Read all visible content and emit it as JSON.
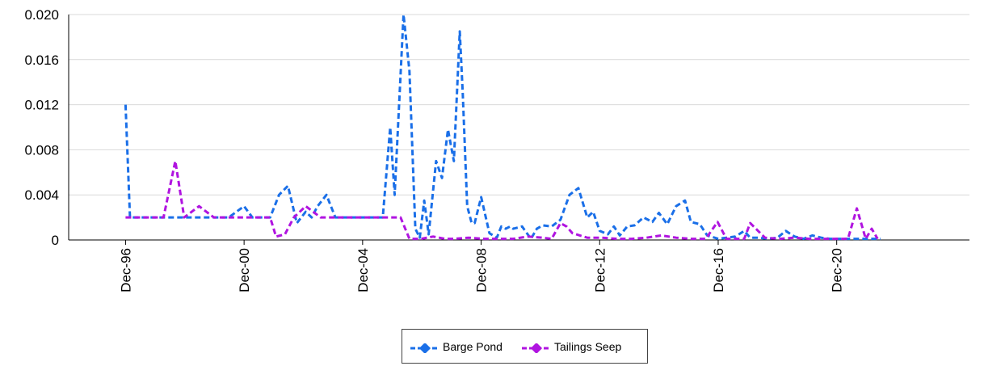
{
  "chart_data": {
    "type": "line",
    "title": "",
    "xlabel": "",
    "ylabel": "",
    "ylim": [
      0,
      0.02
    ],
    "yticks": [
      "0",
      "0.004",
      "0.008",
      "0.012",
      "0.016",
      "0.020"
    ],
    "ytick_values": [
      0,
      0.004,
      0.008,
      0.012,
      0.016,
      0.02
    ],
    "xlim": [
      1995.0,
      2025.4
    ],
    "xticks": [
      "Dec-96",
      "Dec-00",
      "Dec-04",
      "Dec-08",
      "Dec-12",
      "Dec-16",
      "Dec-20"
    ],
    "xtick_values": [
      1996.92,
      2000.92,
      2004.92,
      2008.92,
      2012.92,
      2016.92,
      2020.92
    ],
    "grid": "horizontal",
    "legend": "bottom",
    "series": [
      {
        "name": "Barge Pond",
        "color": "#1a6fe8",
        "style": "dashed",
        "x": [
          1996.92,
          1997.07,
          1997.4,
          1997.9,
          1998.4,
          1998.9,
          1999.4,
          1999.9,
          2000.4,
          2000.92,
          2001.2,
          2001.5,
          2001.8,
          2002.1,
          2002.4,
          2002.7,
          2003.0,
          2003.2,
          2003.4,
          2003.7,
          2004.0,
          2004.5,
          2005.0,
          2005.3,
          2005.6,
          2005.85,
          2006.0,
          2006.3,
          2006.5,
          2006.7,
          2006.85,
          2007.0,
          2007.15,
          2007.4,
          2007.6,
          2007.8,
          2008.0,
          2008.2,
          2008.3,
          2008.45,
          2008.6,
          2008.7,
          2008.92,
          2009.2,
          2009.45,
          2009.6,
          2009.75,
          2009.9,
          2010.0,
          2010.3,
          2010.6,
          2010.8,
          2011.0,
          2011.3,
          2011.6,
          2011.9,
          2012.2,
          2012.5,
          2012.7,
          2012.92,
          2013.2,
          2013.4,
          2013.6,
          2013.85,
          2014.1,
          2014.4,
          2014.7,
          2014.92,
          2015.2,
          2015.5,
          2015.8,
          2016.0,
          2016.3,
          2016.55,
          2016.8,
          2016.92,
          2017.2,
          2017.5,
          2017.8,
          2018.0,
          2018.3,
          2018.6,
          2018.92,
          2019.2,
          2019.5,
          2019.8,
          2020.1,
          2020.4,
          2020.7,
          2021.0,
          2021.2,
          2021.5,
          2021.8,
          2022.0,
          2022.2,
          2022.4
        ],
        "y": [
          0.012,
          0.002,
          0.002,
          0.002,
          0.002,
          0.002,
          0.002,
          0.002,
          0.002,
          0.003,
          0.002,
          0.002,
          0.002,
          0.004,
          0.0048,
          0.0015,
          0.0025,
          0.002,
          0.003,
          0.004,
          0.002,
          0.002,
          0.002,
          0.002,
          0.002,
          0.01,
          0.004,
          0.02,
          0.015,
          0.001,
          0.0002,
          0.0035,
          0.0005,
          0.007,
          0.0055,
          0.0098,
          0.007,
          0.0185,
          0.013,
          0.003,
          0.0015,
          0.0015,
          0.0038,
          0.0006,
          0.0002,
          0.0012,
          0.001,
          0.0012,
          0.001,
          0.0012,
          0.0001,
          0.001,
          0.0013,
          0.0012,
          0.0018,
          0.004,
          0.0046,
          0.002,
          0.0025,
          0.0008,
          0.0005,
          0.0012,
          0.0004,
          0.0012,
          0.0013,
          0.002,
          0.0016,
          0.0024,
          0.0014,
          0.003,
          0.0035,
          0.0016,
          0.0014,
          0.0004,
          0.0002,
          0.0001,
          0.0002,
          0.0003,
          0.0008,
          0.0002,
          0.0002,
          0.0001,
          0.0002,
          0.0008,
          0.0003,
          0.0001,
          0.0004,
          0.0002,
          0.0001,
          0.0001,
          0.0001,
          0.0001,
          0.0001,
          0.0001,
          0.0001,
          0.0001
        ]
      },
      {
        "name": "Tailings Seep",
        "color": "#b014e0",
        "style": "dashed",
        "x": [
          1996.92,
          1997.5,
          1998.2,
          1998.6,
          1998.9,
          1999.4,
          1999.9,
          2000.5,
          2001.0,
          2001.3,
          2001.5,
          2001.8,
          2002.0,
          2002.3,
          2002.6,
          2003.0,
          2003.5,
          2004.0,
          2004.5,
          2005.0,
          2005.5,
          2005.9,
          2006.2,
          2006.5,
          2006.9,
          2007.3,
          2007.7,
          2008.0,
          2008.5,
          2009.0,
          2009.5,
          2010.0,
          2010.5,
          2011.0,
          2011.3,
          2011.6,
          2011.8,
          2012.0,
          2012.5,
          2013.0,
          2013.5,
          2014.0,
          2014.5,
          2015.0,
          2015.5,
          2016.0,
          2016.5,
          2016.9,
          2017.2,
          2017.5,
          2017.8,
          2018.0,
          2018.5,
          2019.0,
          2019.5,
          2020.0,
          2020.5,
          2021.0,
          2021.3,
          2021.6,
          2021.9,
          2022.1,
          2022.3
        ],
        "y": [
          0.002,
          0.002,
          0.002,
          0.007,
          0.002,
          0.003,
          0.002,
          0.002,
          0.002,
          0.002,
          0.002,
          0.002,
          0.0003,
          0.0005,
          0.002,
          0.003,
          0.002,
          0.002,
          0.002,
          0.002,
          0.002,
          0.002,
          0.002,
          0.0001,
          0.0001,
          0.0003,
          0.0001,
          0.0001,
          0.0002,
          0.0001,
          0.0001,
          0.0001,
          0.0003,
          0.0002,
          0.0001,
          0.0015,
          0.0012,
          0.0006,
          0.0002,
          0.0002,
          0.0001,
          0.0001,
          0.0002,
          0.0004,
          0.0002,
          0.0001,
          0.0001,
          0.0016,
          0.0001,
          0.0001,
          0.0001,
          0.0015,
          0.0002,
          0.0001,
          0.0002,
          0.0001,
          0.0001,
          0.0001,
          0.0001,
          0.0028,
          0.0001,
          0.001,
          0.0001
        ]
      }
    ]
  }
}
